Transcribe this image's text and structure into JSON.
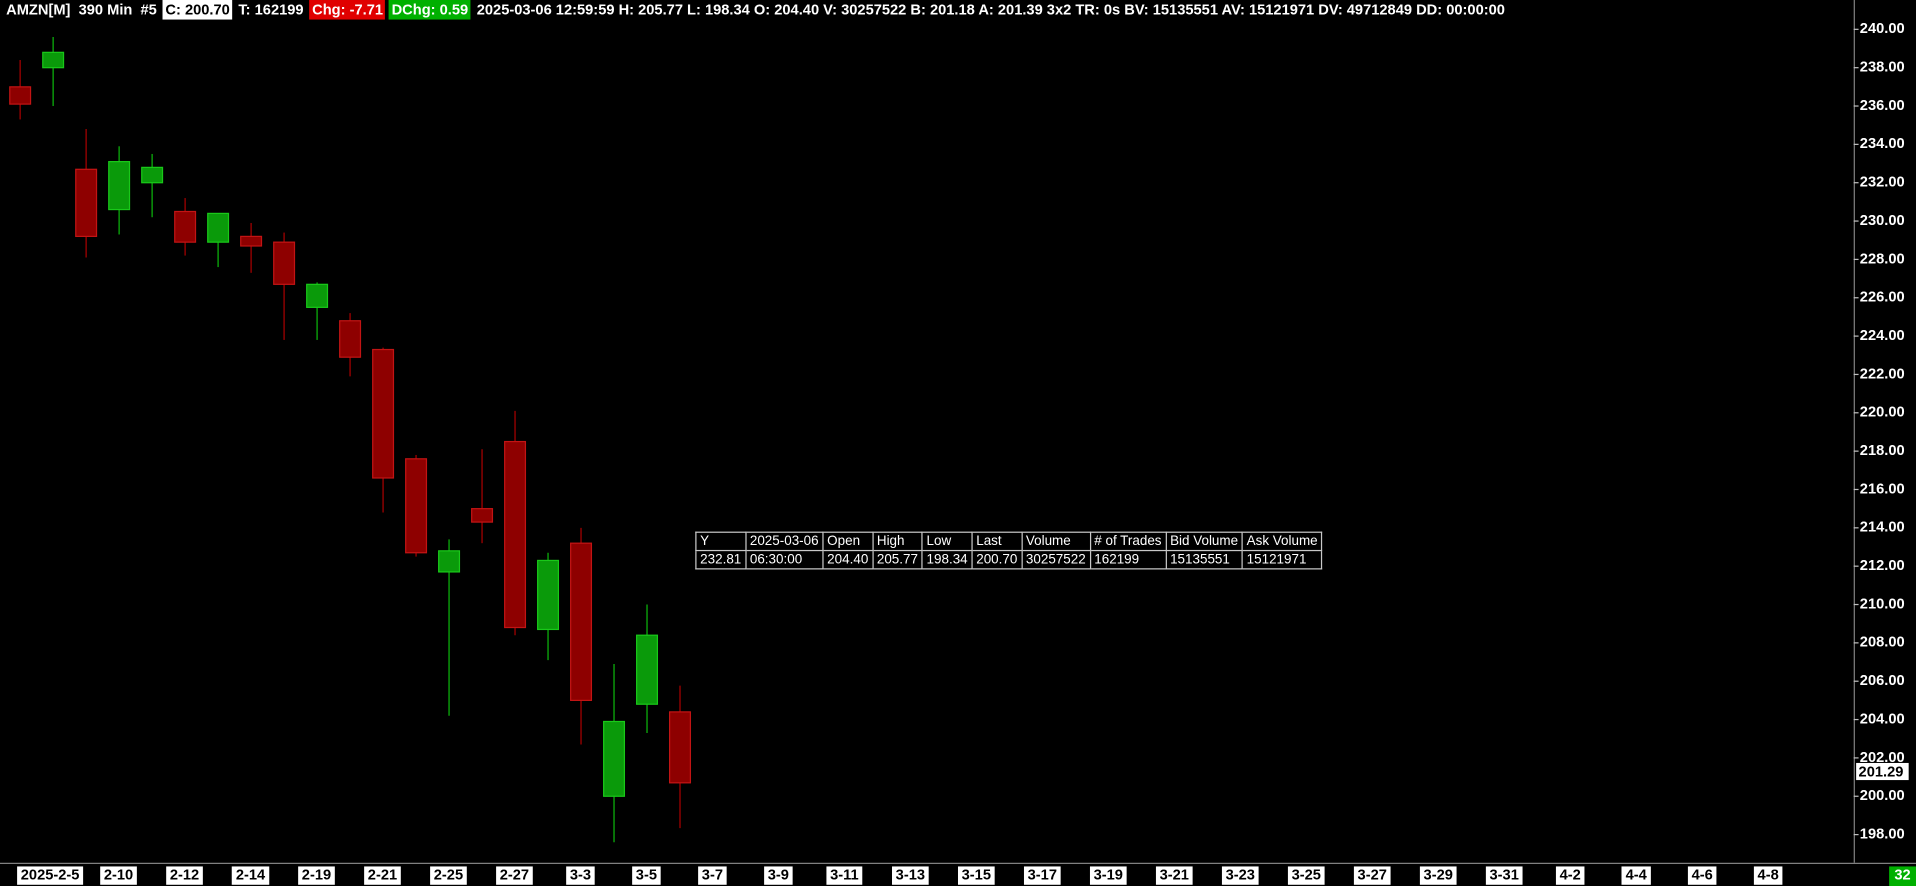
{
  "header": {
    "title": "AMZN[M]  390 Min  #5",
    "close": "C: 200.70",
    "trades": "T: 162199",
    "change": "Chg: -7.71",
    "daily_change": "DChg: 0.59",
    "details": "2025-03-06 12:59:59 H: 205.77 L: 198.34 O: 204.40 V: 30257522 B: 201.18 A: 201.39 3x2 TR: 0s BV: 15135551 AV: 15121971 DV: 49712849 DD: 00:00:00"
  },
  "table": {
    "header": [
      "Y",
      "2025-03-06",
      "Open",
      "High",
      "Low",
      "Last",
      "Volume",
      "# of Trades",
      "Bid Volume",
      "Ask Volume"
    ],
    "rows": [
      [
        "232.81",
        "06:30:00",
        "204.40",
        "205.77",
        "198.34",
        "200.70",
        "30257522",
        "162199",
        "15135551",
        "15121971"
      ]
    ]
  },
  "corner_label": "32",
  "chart_data": {
    "type": "candlestick",
    "categories": [
      "2025-2-5",
      null,
      null,
      "2-10",
      null,
      "2-12",
      null,
      "2-14",
      null,
      "2-19",
      null,
      "2-21",
      null,
      "2-25",
      null,
      "2-27",
      null,
      "3-3",
      null,
      "3-5",
      null,
      "3-7",
      null,
      "3-9",
      null,
      "3-11",
      null,
      "3-13",
      null,
      "3-15",
      null,
      "3-17",
      null,
      "3-19",
      null,
      "3-21",
      null,
      "3-23",
      null,
      "3-25",
      null,
      "3-27",
      null,
      "3-29",
      null,
      "3-31",
      null,
      "4-2",
      null,
      "4-4",
      null,
      "4-6",
      null,
      "4-8"
    ],
    "open": [
      237.0,
      238.0,
      232.7,
      230.6,
      232.0,
      230.5,
      228.9,
      229.2,
      228.9,
      225.5,
      224.8,
      223.3,
      217.6,
      211.7,
      215.0,
      218.5,
      208.7,
      213.2,
      200.0,
      204.8,
      204.4,
      null,
      null,
      null,
      null,
      null,
      null,
      null,
      null,
      null,
      null,
      null,
      null,
      null,
      null,
      null,
      null,
      null,
      null,
      null,
      null,
      null,
      null,
      null,
      null,
      null,
      null,
      null,
      null,
      null,
      null,
      null,
      null,
      null
    ],
    "high": [
      238.4,
      239.6,
      234.8,
      233.9,
      233.5,
      231.2,
      230.4,
      229.9,
      229.4,
      226.8,
      225.2,
      223.4,
      217.8,
      213.4,
      218.1,
      220.1,
      212.7,
      214.0,
      206.9,
      210.0,
      205.77,
      null,
      null,
      null,
      null,
      null,
      null,
      null,
      null,
      null,
      null,
      null,
      null,
      null,
      null,
      null,
      null,
      null,
      null,
      null,
      null,
      null,
      null,
      null,
      null,
      null,
      null,
      null,
      null,
      null,
      null,
      null,
      null,
      null
    ],
    "low": [
      235.3,
      236.0,
      228.1,
      229.3,
      230.2,
      228.2,
      227.6,
      227.3,
      223.8,
      223.8,
      221.9,
      214.8,
      212.5,
      204.2,
      213.2,
      208.4,
      207.1,
      202.7,
      197.6,
      203.3,
      198.34,
      null,
      null,
      null,
      null,
      null,
      null,
      null,
      null,
      null,
      null,
      null,
      null,
      null,
      null,
      null,
      null,
      null,
      null,
      null,
      null,
      null,
      null,
      null,
      null,
      null,
      null,
      null,
      null,
      null,
      null,
      null,
      null,
      null
    ],
    "close": [
      236.1,
      238.8,
      229.2,
      233.1,
      232.8,
      228.9,
      230.4,
      228.7,
      226.7,
      226.7,
      222.9,
      216.6,
      212.7,
      212.8,
      214.3,
      208.8,
      212.3,
      205.0,
      203.9,
      208.4,
      200.7,
      null,
      null,
      null,
      null,
      null,
      null,
      null,
      null,
      null,
      null,
      null,
      null,
      null,
      null,
      null,
      null,
      null,
      null,
      null,
      null,
      null,
      null,
      null,
      null,
      null,
      null,
      null,
      null,
      null,
      null,
      null,
      null,
      null
    ],
    "up_color": "#0a9a0a",
    "down_color": "#8e0000",
    "ylim": [
      196.53,
      240.51
    ],
    "yticks": [
      {
        "value": 198,
        "label": "198.00"
      },
      {
        "value": 200,
        "label": "200.00"
      },
      {
        "value": 202,
        "label": "202.00"
      },
      {
        "value": 204,
        "label": "204.00"
      },
      {
        "value": 206,
        "label": "206.00"
      },
      {
        "value": 208,
        "label": "208.00"
      },
      {
        "value": 210,
        "label": "210.00"
      },
      {
        "value": 212,
        "label": "212.00"
      },
      {
        "value": 214,
        "label": "214.00"
      },
      {
        "value": 216,
        "label": "216.00"
      },
      {
        "value": 218,
        "label": "218.00"
      },
      {
        "value": 220,
        "label": "220.00"
      },
      {
        "value": 222,
        "label": "222.00"
      },
      {
        "value": 224,
        "label": "224.00"
      },
      {
        "value": 226,
        "label": "226.00"
      },
      {
        "value": 228,
        "label": "228.00"
      },
      {
        "value": 230,
        "label": "230.00"
      },
      {
        "value": 232,
        "label": "232.00"
      },
      {
        "value": 234,
        "label": "234.00"
      },
      {
        "value": 236,
        "label": "236.00"
      },
      {
        "value": 238,
        "label": "238.00"
      },
      {
        "value": 240,
        "label": "240.00"
      }
    ],
    "last_price": {
      "value": 201.29,
      "label": "201.29"
    },
    "grid": false
  }
}
